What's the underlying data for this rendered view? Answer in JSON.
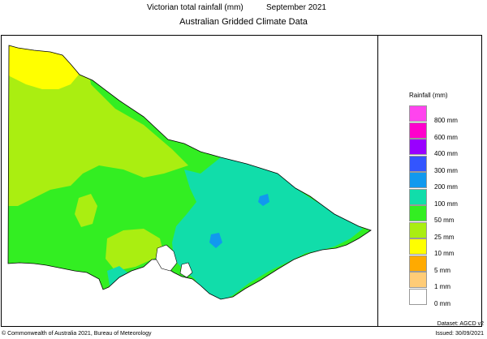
{
  "title": "Victorian total rainfall (mm)",
  "period": "September 2021",
  "subtitle": "Australian Gridded Climate Data",
  "legend": {
    "title": "Rainfall (mm)",
    "items": [
      {
        "label": "800 mm",
        "color": "#ff44ee"
      },
      {
        "label": "600 mm",
        "color": "#ff00cc"
      },
      {
        "label": "400 mm",
        "color": "#9900ff"
      },
      {
        "label": "300 mm",
        "color": "#3355ff"
      },
      {
        "label": "200 mm",
        "color": "#1199ee"
      },
      {
        "label": "100 mm",
        "color": "#11ddaa"
      },
      {
        "label": "50 mm",
        "color": "#33ee22"
      },
      {
        "label": "25 mm",
        "color": "#aaee11"
      },
      {
        "label": "10 mm",
        "color": "#ffff00"
      },
      {
        "label": "5 mm",
        "color": "#ffaa00"
      },
      {
        "label": "1 mm",
        "color": "#ffcc77"
      },
      {
        "label": "0 mm",
        "color": "#ffffff"
      }
    ]
  },
  "colors": {
    "ten_mm": "#ffff00",
    "twentyfive_mm": "#aaee11",
    "fifty_mm": "#33ee22",
    "hundred_mm": "#11ddaa",
    "two_hundred_mm": "#1199ee"
  },
  "footer": {
    "copyright": "© Commonwealth of Australia 2021, Bureau of Meteorology",
    "dataset": "Dataset: AGCD v2",
    "issued": "Issued: 30/09/2021"
  }
}
